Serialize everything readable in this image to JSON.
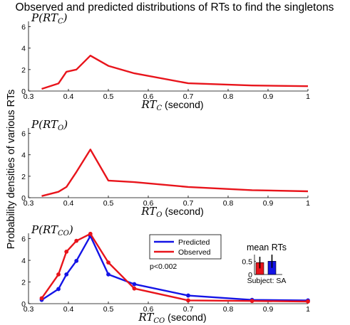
{
  "figure": {
    "title": "Observed and predicted distributions of RTs to find the singletons",
    "ylabel": "Probability densities of various RTs"
  },
  "chart_data": [
    {
      "type": "line",
      "panel": "RT_C",
      "annotation_main": "P(RT",
      "annotation_sub": "C",
      "xlabel_main": "RT",
      "xlabel_sub": "C",
      "xlabel_unit": " (second)",
      "xlim": [
        0.3,
        1.0
      ],
      "ylim": [
        0,
        6.5
      ],
      "xticks": [
        0.3,
        0.4,
        0.5,
        0.6,
        0.7,
        0.8,
        0.9,
        1.0
      ],
      "xtick_labels": [
        "0.3",
        "0.4",
        "0.5",
        "0.6",
        "0.7",
        "0.8",
        "0.9",
        "1"
      ],
      "yticks": [
        0,
        2,
        4,
        6
      ],
      "ytick_labels": [
        "0",
        "2",
        "4",
        "6"
      ],
      "series": [
        {
          "color": "#e8141b",
          "x": [
            0.333,
            0.375,
            0.395,
            0.42,
            0.455,
            0.5,
            0.565,
            0.7,
            0.86,
            1.0
          ],
          "y": [
            0.2,
            0.7,
            1.8,
            2.0,
            3.3,
            2.35,
            1.65,
            0.72,
            0.52,
            0.45
          ]
        }
      ]
    },
    {
      "type": "line",
      "panel": "RT_O",
      "annotation_main": "P(RT",
      "annotation_sub": "O",
      "xlabel_main": "RT",
      "xlabel_sub": "O",
      "xlabel_unit": " (second)",
      "xlim": [
        0.3,
        1.0
      ],
      "ylim": [
        0,
        6.5
      ],
      "xticks": [
        0.3,
        0.4,
        0.5,
        0.6,
        0.7,
        0.8,
        0.9,
        1.0
      ],
      "xtick_labels": [
        "0.3",
        "0.4",
        "0.5",
        "0.6",
        "0.7",
        "0.8",
        "0.9",
        "1"
      ],
      "yticks": [
        0,
        2,
        4,
        6
      ],
      "ytick_labels": [
        "0",
        "2",
        "4",
        "6"
      ],
      "series": [
        {
          "color": "#e8141b",
          "x": [
            0.333,
            0.375,
            0.395,
            0.42,
            0.455,
            0.5,
            0.565,
            0.7,
            0.86,
            1.0
          ],
          "y": [
            0.15,
            0.55,
            1.0,
            2.4,
            4.5,
            1.6,
            1.45,
            1.0,
            0.7,
            0.6
          ]
        }
      ]
    },
    {
      "type": "line",
      "panel": "RT_CO",
      "annotation_main": "P(RT",
      "annotation_sub": "CO",
      "xlabel_main": "RT",
      "xlabel_sub": "CO",
      "xlabel_unit": " (second)",
      "xlim": [
        0.3,
        1.0
      ],
      "ylim": [
        0,
        6.5
      ],
      "xticks": [
        0.3,
        0.4,
        0.5,
        0.6,
        0.7,
        0.8,
        0.9,
        1.0
      ],
      "xtick_labels": [
        "0.3",
        "0.4",
        "0.5",
        "0.6",
        "0.7",
        "0.8",
        "0.9",
        "1"
      ],
      "yticks": [
        0,
        2,
        4,
        6
      ],
      "ytick_labels": [
        "0",
        "2",
        "4",
        "6"
      ],
      "legend": "top-center",
      "annotation_pvalue": "p<0.002",
      "series": [
        {
          "name": "Predicted",
          "color": "#1414e6",
          "x": [
            0.333,
            0.375,
            0.395,
            0.42,
            0.455,
            0.5,
            0.565,
            0.7,
            0.86,
            1.0
          ],
          "y": [
            0.35,
            1.35,
            2.7,
            3.95,
            6.25,
            2.7,
            1.8,
            0.75,
            0.35,
            0.3
          ]
        },
        {
          "name": "Observed",
          "color": "#e8141b",
          "x": [
            0.333,
            0.375,
            0.395,
            0.42,
            0.455,
            0.5,
            0.565,
            0.7,
            0.86,
            1.0
          ],
          "y": [
            0.5,
            2.7,
            4.8,
            5.8,
            6.45,
            3.8,
            1.4,
            0.3,
            0.25,
            0.2
          ]
        }
      ],
      "inset": {
        "type": "bar",
        "title": "mean RTs",
        "subject_label": "Subject: SA",
        "ylim": [
          0,
          0.75
        ],
        "yticks": [
          0,
          0.5
        ],
        "ytick_labels": [
          "0",
          "0.5"
        ],
        "bars": [
          {
            "color": "#e8141b",
            "value": 0.45,
            "error": 0.22
          },
          {
            "color": "#1414e6",
            "value": 0.5,
            "error": 0.25
          }
        ]
      }
    }
  ]
}
